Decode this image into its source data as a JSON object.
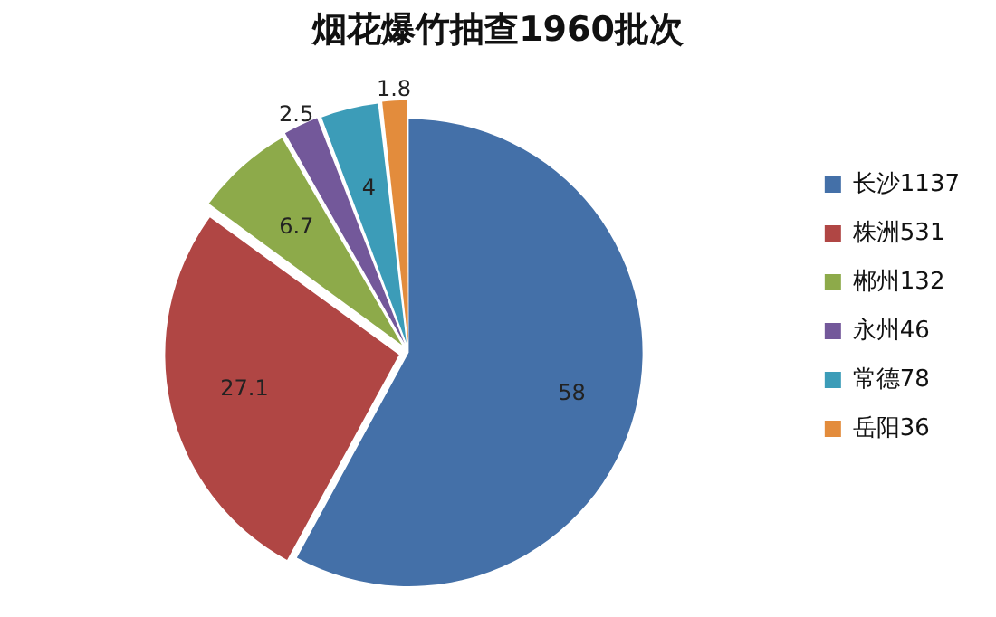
{
  "chart_data": {
    "type": "pie",
    "title": "烟花爆竹抽查1960批次",
    "categories": [
      "长沙1137",
      "株洲531",
      "郴州132",
      "永州46",
      "常德78",
      "岳阳36"
    ],
    "values": [
      58,
      27.1,
      6.7,
      2.5,
      4,
      1.8
    ],
    "colors": [
      "#4470a8",
      "#b04644",
      "#8daa4a",
      "#73589a",
      "#3c9cb8",
      "#e38c3c"
    ],
    "data_labels": true,
    "legend": "right"
  }
}
